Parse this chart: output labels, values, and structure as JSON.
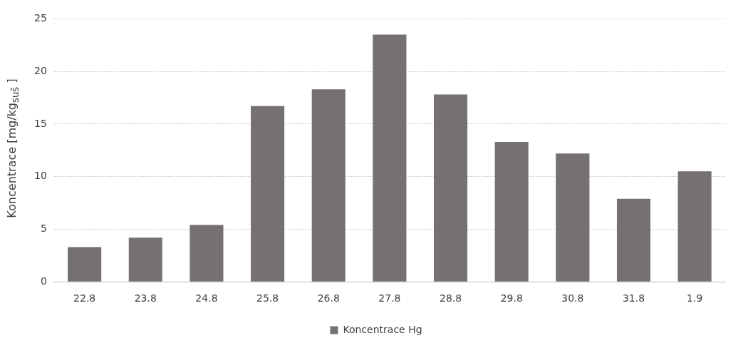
{
  "chart_data": {
    "type": "bar",
    "ylabel": "Koncentrace [mg/kg$_{suš}$ ]",
    "categories": [
      "22.8",
      "23.8",
      "24.8",
      "25.8",
      "26.8",
      "27.8",
      "28.8",
      "29.8",
      "30.8",
      "31.8",
      "1.9"
    ],
    "series": [
      {
        "name": "Koncentrace Hg",
        "color": "#767171",
        "values": [
          3.3,
          4.2,
          5.4,
          16.7,
          18.3,
          23.5,
          17.8,
          13.3,
          12.2,
          7.9,
          10.5
        ]
      }
    ],
    "ylim": [
      0,
      25
    ],
    "yticks": [
      0,
      5,
      10,
      15,
      20,
      25
    ],
    "grid": "y",
    "legend": "bottom"
  }
}
